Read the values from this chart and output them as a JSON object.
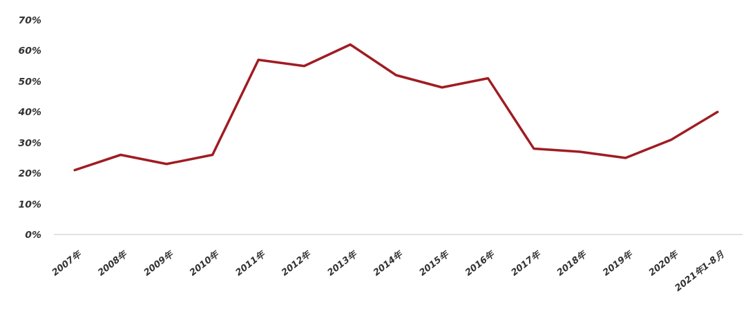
{
  "chart_data": {
    "type": "line",
    "categories": [
      "2007年",
      "2008年",
      "2009年",
      "2010年",
      "2011年",
      "2012年",
      "2013年",
      "2014年",
      "2015年",
      "2016年",
      "2017年",
      "2018年",
      "2019年",
      "2020年",
      "2021年1-8月"
    ],
    "series": [
      {
        "color": "#a01c22",
        "values": [
          21,
          26,
          23,
          26,
          57,
          55,
          62,
          52,
          48,
          51,
          28,
          27,
          25,
          31,
          40
        ]
      }
    ],
    "ylim": [
      0,
      70
    ],
    "yticks": [
      {
        "value": 0,
        "label": "0%"
      },
      {
        "value": 10,
        "label": "10%"
      },
      {
        "value": 20,
        "label": "20%"
      },
      {
        "value": 30,
        "label": "30%"
      },
      {
        "value": 40,
        "label": "40%"
      },
      {
        "value": 50,
        "label": "50%"
      },
      {
        "value": 60,
        "label": "60%"
      },
      {
        "value": 70,
        "label": "70%"
      }
    ],
    "grid": false,
    "marker": "none",
    "line_style": "solid"
  }
}
